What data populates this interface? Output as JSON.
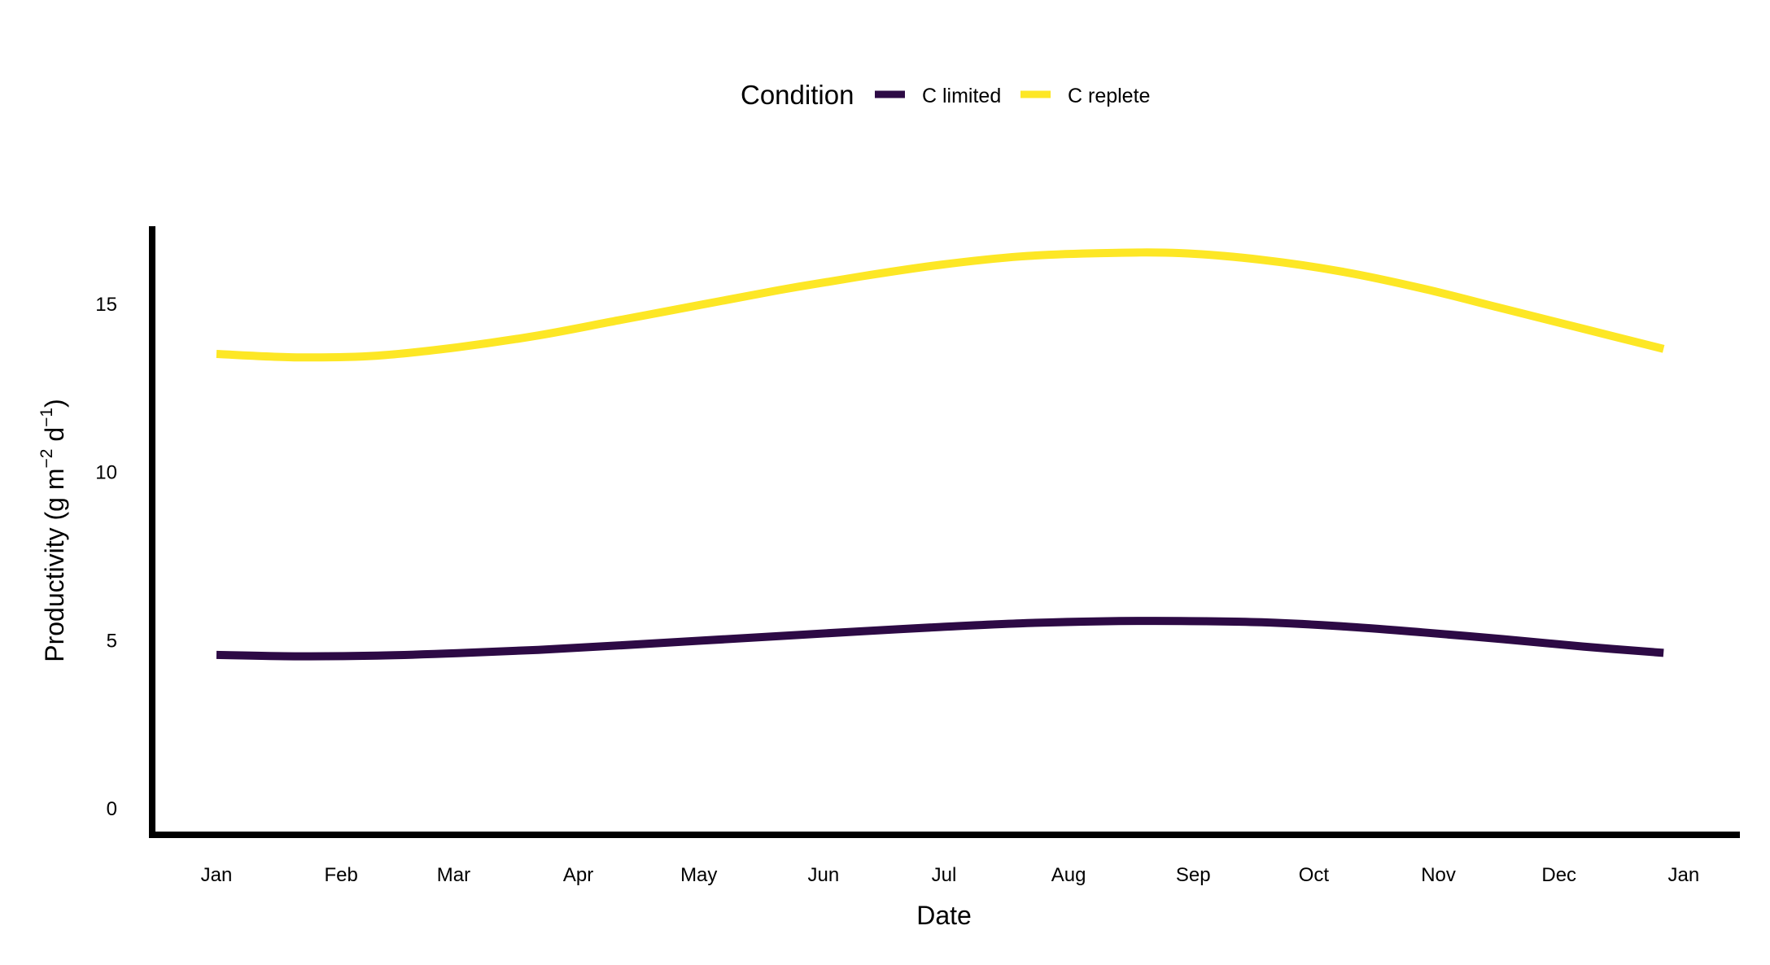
{
  "chart_data": {
    "type": "line",
    "title": "",
    "xlabel": "Date",
    "ylabel": "Productivity (g m",
    "ylabel_sup1": "−2",
    "ylabel_mid": " d",
    "ylabel_sup2": "−1",
    "ylabel_end": ")",
    "legend": {
      "title": "Condition",
      "position": "top",
      "entries": [
        "C limited",
        "C replete"
      ]
    },
    "x_ticks": [
      "Jan",
      "Feb",
      "Mar",
      "Apr",
      "May",
      "Jun",
      "Jul",
      "Aug",
      "Sep",
      "Oct",
      "Nov",
      "Dec",
      "Jan"
    ],
    "y_ticks": [
      "0",
      "5",
      "10",
      "15"
    ],
    "ylim": [
      -0.8,
      17.3
    ],
    "xlim_days": [
      -16,
      379
    ],
    "grid": false,
    "series": [
      {
        "name": "C limited",
        "color": "#2d0a45",
        "x_days": [
          0,
          20,
          40,
          60,
          80,
          100,
          120,
          140,
          160,
          180,
          200,
          220,
          240,
          260,
          280,
          300,
          320,
          340,
          360
        ],
        "values": [
          4.55,
          4.51,
          4.53,
          4.6,
          4.7,
          4.83,
          4.97,
          5.11,
          5.25,
          5.38,
          5.49,
          5.55,
          5.56,
          5.52,
          5.4,
          5.22,
          5.02,
          4.8,
          4.61
        ]
      },
      {
        "name": "C replete",
        "color": "#fde725",
        "x_days": [
          0,
          20,
          40,
          60,
          80,
          100,
          120,
          140,
          160,
          180,
          200,
          220,
          240,
          260,
          280,
          300,
          320,
          340,
          360
        ],
        "values": [
          13.5,
          13.4,
          13.45,
          13.7,
          14.05,
          14.5,
          14.95,
          15.4,
          15.8,
          16.15,
          16.4,
          16.5,
          16.5,
          16.3,
          15.95,
          15.45,
          14.85,
          14.25,
          13.65
        ]
      }
    ]
  }
}
